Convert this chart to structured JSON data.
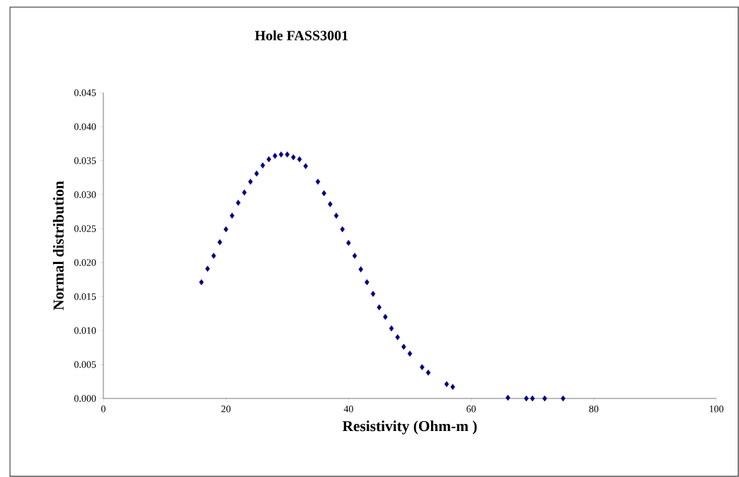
{
  "chart_data": {
    "type": "scatter",
    "title": "Hole FASS3001",
    "xlabel": "Resistivity (Ohm-m )",
    "ylabel": "Normal distribution",
    "x": [
      16,
      17,
      18,
      19,
      20,
      21,
      22,
      23,
      24,
      25,
      26,
      27,
      28,
      29,
      30,
      31,
      32,
      33,
      35,
      36,
      37,
      38,
      39,
      40,
      41,
      42,
      43,
      44,
      45,
      46,
      47,
      48,
      49,
      50,
      52,
      53,
      56,
      57,
      66,
      69,
      70,
      72,
      75
    ],
    "values": [
      0.0171,
      0.0191,
      0.021,
      0.023,
      0.0249,
      0.0269,
      0.0288,
      0.0303,
      0.0319,
      0.0331,
      0.0343,
      0.0352,
      0.0357,
      0.0359,
      0.0359,
      0.0355,
      0.0352,
      0.0342,
      0.0319,
      0.0302,
      0.0286,
      0.0269,
      0.0249,
      0.0229,
      0.021,
      0.019,
      0.0171,
      0.0154,
      0.0134,
      0.012,
      0.0103,
      0.009,
      0.0076,
      0.0066,
      0.0046,
      0.0038,
      0.0021,
      0.0017,
      0.0001,
      0,
      0,
      0,
      0
    ],
    "color": "#000080",
    "marker": "diamond",
    "xlim": [
      0,
      100
    ],
    "ylim": [
      0,
      0.045
    ],
    "xticks": [
      0,
      20,
      40,
      60,
      80,
      100
    ],
    "yticks": [
      {
        "value": 0,
        "label": "0.000"
      },
      {
        "value": 0.005,
        "label": "0.005"
      },
      {
        "value": 0.01,
        "label": "0.010"
      },
      {
        "value": 0.015,
        "label": "0.015"
      },
      {
        "value": 0.02,
        "label": "0.020"
      },
      {
        "value": 0.025,
        "label": "0.025"
      },
      {
        "value": 0.03,
        "label": "0.030"
      },
      {
        "value": 0.035,
        "label": "0.035"
      },
      {
        "value": 0.04,
        "label": "0.040"
      },
      {
        "value": 0.045,
        "label": "0.045"
      }
    ]
  }
}
